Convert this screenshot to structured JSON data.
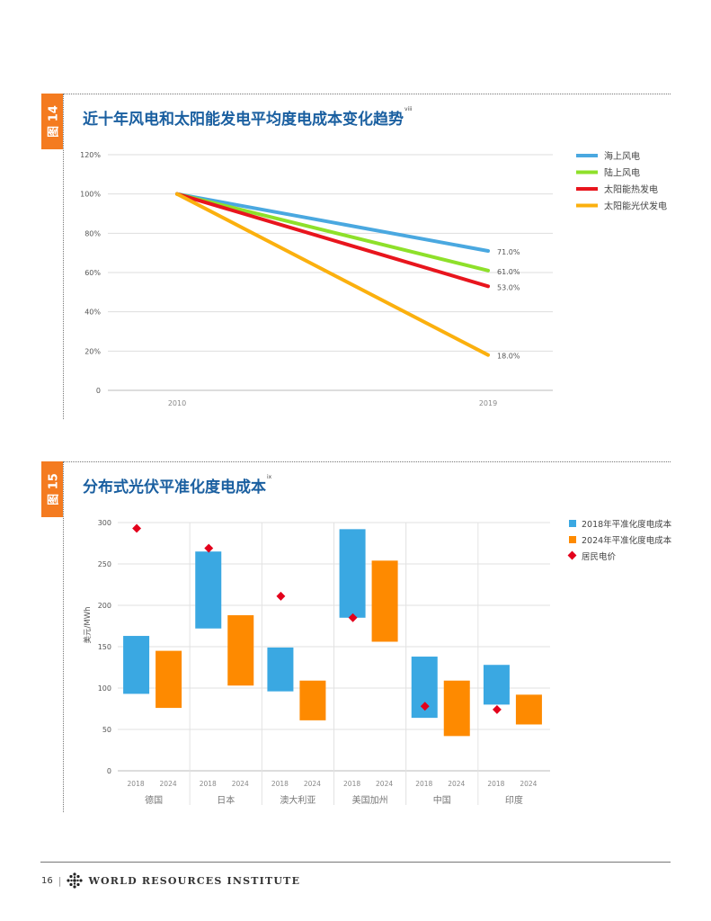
{
  "fig14": {
    "tag": "图 14",
    "title": "近十年风电和太阳能发电平均度电成本变化趋势",
    "title_sup": "viii"
  },
  "fig15": {
    "tag": "图 15",
    "title": "分布式光伏平准化度电成本",
    "title_sup": "ix"
  },
  "footer": {
    "page": "16",
    "org": "WORLD RESOURCES INSTITUTE"
  },
  "chart_data": [
    {
      "type": "line",
      "x": [
        "2010",
        "2019"
      ],
      "yticks": [
        "0",
        "20%",
        "40%",
        "60%",
        "80%",
        "100%",
        "120%"
      ],
      "ylim": [
        0,
        120
      ],
      "grid": true,
      "legend_position": "right",
      "series": [
        {
          "name": "海上风电",
          "values": [
            100,
            71.0
          ],
          "end_label": "71.0%",
          "color": "#4aa8e0"
        },
        {
          "name": "陆上风电",
          "values": [
            100,
            61.0
          ],
          "end_label": "61.0%",
          "color": "#8ee02a"
        },
        {
          "name": "太阳能热发电",
          "values": [
            100,
            53.0
          ],
          "end_label": "53.0%",
          "color": "#e8151d"
        },
        {
          "name": "太阳能光伏发电",
          "values": [
            100,
            18.0
          ],
          "end_label": "18.0%",
          "color": "#fbb00e"
        }
      ]
    },
    {
      "type": "bar",
      "ylabel": "美元/MWh",
      "ylim": [
        0,
        300
      ],
      "yticks": [
        "0",
        "50",
        "100",
        "150",
        "200",
        "250",
        "300"
      ],
      "grid": true,
      "legend_position": "right",
      "legend": [
        {
          "name": "2018年平准化度电成本",
          "color": "#3aa8e2"
        },
        {
          "name": "2024年平准化度电成本",
          "color": "#fe8a00"
        },
        {
          "name": "居民电价",
          "color": "#e3001b"
        }
      ],
      "groups": [
        {
          "name": "德国",
          "years": [
            "2018",
            "2024"
          ],
          "lcoe_2018": [
            93,
            163
          ],
          "lcoe_2024": [
            76,
            145
          ],
          "price": 293
        },
        {
          "name": "日本",
          "years": [
            "2018",
            "2024"
          ],
          "lcoe_2018": [
            172,
            265
          ],
          "lcoe_2024": [
            103,
            188
          ],
          "price": 269
        },
        {
          "name": "澳大利亚",
          "years": [
            "2018",
            "2024"
          ],
          "lcoe_2018": [
            96,
            149
          ],
          "lcoe_2024": [
            61,
            109
          ],
          "price": 211
        },
        {
          "name": "美国加州",
          "years": [
            "2018",
            "2024"
          ],
          "lcoe_2018": [
            185,
            292
          ],
          "lcoe_2024": [
            156,
            254
          ],
          "price": 185
        },
        {
          "name": "中国",
          "years": [
            "2018",
            "2024"
          ],
          "lcoe_2018": [
            64,
            138
          ],
          "lcoe_2024": [
            42,
            109
          ],
          "price": 78
        },
        {
          "name": "印度",
          "years": [
            "2018",
            "2024"
          ],
          "lcoe_2018": [
            80,
            128
          ],
          "lcoe_2024": [
            56,
            92
          ],
          "price": 74
        }
      ]
    }
  ]
}
